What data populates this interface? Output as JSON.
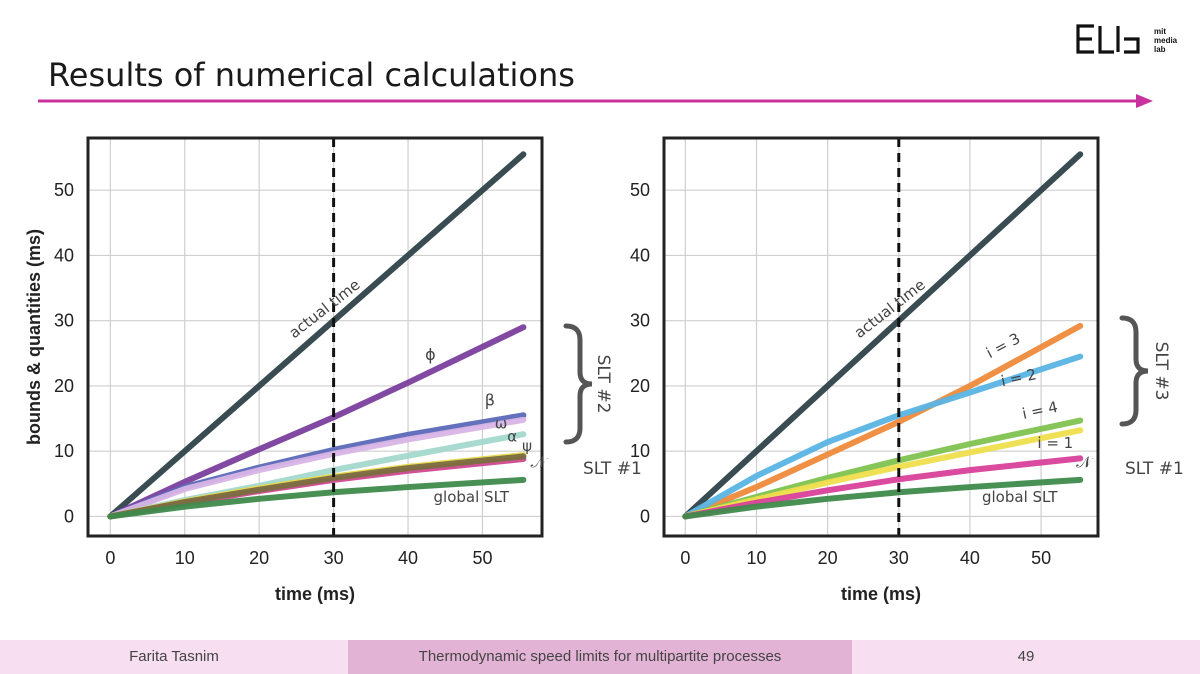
{
  "slide": {
    "title": "Results of numerical calculations",
    "accent_color": "#c8329e"
  },
  "logo": {
    "text_lines": [
      "mit",
      "media",
      "lab"
    ]
  },
  "footer": {
    "author": "Farita Tasnim",
    "talk_title": "Thermodynamic speed limits for multipartite processes",
    "page": "49"
  },
  "chart_data": [
    {
      "type": "line",
      "xlabel": "time (ms)",
      "ylabel": "bounds & quantities (ms)",
      "xlim": [
        -3,
        58
      ],
      "ylim": [
        -3,
        58
      ],
      "xticks": [
        0,
        10,
        20,
        30,
        40,
        50
      ],
      "yticks": [
        0,
        10,
        20,
        30,
        40,
        50
      ],
      "grid": true,
      "vline": {
        "x": 30,
        "style": "dashed"
      },
      "series": [
        {
          "name": "actual time",
          "color": "#2e4248",
          "x": [
            0,
            55.5
          ],
          "y": [
            0,
            55.5
          ]
        },
        {
          "name": "ϕ",
          "color": "#7b3f9e",
          "x": [
            0,
            10,
            20,
            30,
            40,
            55.5
          ],
          "y": [
            0,
            5.3,
            10.3,
            15.2,
            20.5,
            29
          ]
        },
        {
          "name": "β",
          "color": "#5b68b8",
          "x": [
            0,
            10,
            20,
            30,
            40,
            55.5
          ],
          "y": [
            0,
            4.5,
            7.5,
            10.2,
            12.5,
            15.5
          ]
        },
        {
          "name": "ω",
          "color": "#d8b4e6",
          "x": [
            0,
            10,
            20,
            30,
            40,
            55.5
          ],
          "y": [
            0,
            4.2,
            7.1,
            9.6,
            11.8,
            14.8
          ]
        },
        {
          "name": "α",
          "color": "#a4d8cc",
          "x": [
            0,
            10,
            20,
            30,
            40,
            55.5
          ],
          "y": [
            0,
            2.5,
            4.7,
            7.1,
            9.3,
            12.6
          ]
        },
        {
          "name": "ψ",
          "color": "#e8d84a",
          "x": [
            0,
            10,
            20,
            30,
            40,
            55.5
          ],
          "y": [
            0,
            2.3,
            4.3,
            6.1,
            7.6,
            9.4
          ]
        },
        {
          "name": "𝒩",
          "color": "#d04890",
          "x": [
            0,
            10,
            20,
            30,
            40,
            55.5
          ],
          "y": [
            0,
            2.0,
            3.9,
            5.6,
            7.0,
            8.8
          ]
        },
        {
          "name": "",
          "color": "#7a6e40",
          "x": [
            0,
            10,
            20,
            30,
            40,
            55.5
          ],
          "y": [
            0,
            2.2,
            4.1,
            5.9,
            7.4,
            9.2
          ]
        },
        {
          "name": "global SLT",
          "color": "#3f8a4c",
          "x": [
            0,
            10,
            20,
            30,
            40,
            55.5
          ],
          "y": [
            0,
            1.5,
            2.7,
            3.7,
            4.5,
            5.6
          ]
        }
      ],
      "annotations": {
        "bracket_label": "SLT #2",
        "slt1_label": "SLT #1"
      }
    },
    {
      "type": "line",
      "xlabel": "time (ms)",
      "ylabel": "",
      "xlim": [
        -3,
        58
      ],
      "ylim": [
        -3,
        58
      ],
      "xticks": [
        0,
        10,
        20,
        30,
        40,
        50
      ],
      "yticks": [
        0,
        10,
        20,
        30,
        40,
        50
      ],
      "grid": true,
      "vline": {
        "x": 30,
        "style": "dashed"
      },
      "series": [
        {
          "name": "actual time",
          "color": "#2e4248",
          "x": [
            0,
            55.5
          ],
          "y": [
            0,
            55.5
          ]
        },
        {
          "name": "i = 3",
          "color": "#ee8a3a",
          "x": [
            0,
            10,
            20,
            30,
            40,
            55.5
          ],
          "y": [
            0,
            4.5,
            9.5,
            14.5,
            20,
            29.2
          ]
        },
        {
          "name": "i = 2",
          "color": "#5ab4e4",
          "x": [
            0,
            10,
            20,
            30,
            40,
            55.5
          ],
          "y": [
            0,
            6.2,
            11.4,
            15.5,
            19.0,
            24.5
          ]
        },
        {
          "name": "i = 4",
          "color": "#7fc350",
          "x": [
            0,
            10,
            20,
            30,
            40,
            55.5
          ],
          "y": [
            0,
            3.0,
            5.9,
            8.6,
            11.1,
            14.7
          ]
        },
        {
          "name": "i = 1",
          "color": "#eede4c",
          "x": [
            0,
            10,
            20,
            30,
            40,
            55.5
          ],
          "y": [
            0,
            2.6,
            5.2,
            7.6,
            9.8,
            13.2
          ]
        },
        {
          "name": "𝒩",
          "color": "#d8409a",
          "x": [
            0,
            10,
            20,
            30,
            40,
            55.5
          ],
          "y": [
            0,
            2.1,
            4.0,
            5.7,
            7.1,
            8.9
          ]
        },
        {
          "name": "global SLT",
          "color": "#3f8a4c",
          "x": [
            0,
            10,
            20,
            30,
            40,
            55.5
          ],
          "y": [
            0,
            1.5,
            2.7,
            3.7,
            4.5,
            5.6
          ]
        }
      ],
      "annotations": {
        "bracket_label": "SLT #3",
        "slt1_label": "SLT #1"
      }
    }
  ]
}
